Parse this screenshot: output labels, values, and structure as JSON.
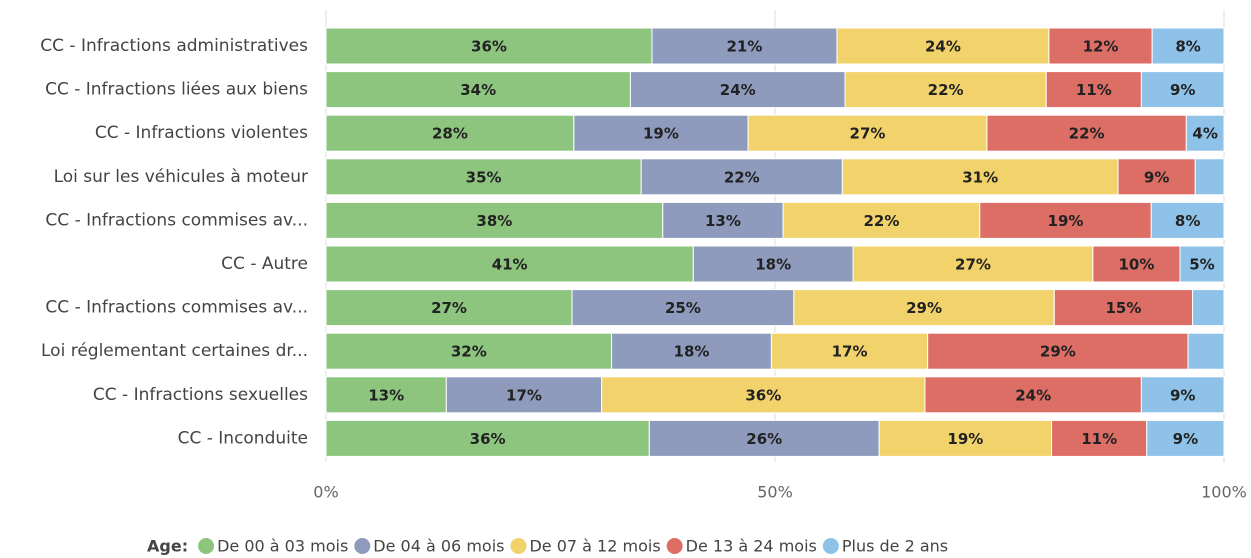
{
  "chart_data": {
    "type": "stacked-bar-horizontal",
    "categories": [
      "CC - Infractions administratives",
      "CC - Infractions liées aux biens",
      "CC - Infractions violentes",
      "Loi sur les véhicules à moteur",
      "CC - Infractions commises av...",
      "CC - Autre",
      "CC - Infractions commises av...",
      "Loi réglementant certaines dr...",
      "CC - Infractions sexuelles",
      "CC - Inconduite"
    ],
    "legend_title": "Age:",
    "series": [
      {
        "name": "De 00 à 03 mois",
        "color": "#8dc57f",
        "values": [
          36.3,
          33.9,
          27.6,
          35.1,
          37.5,
          40.9,
          27.4,
          31.8,
          13.4,
          36.0
        ],
        "value_labels": [
          "36%",
          "34%",
          "28%",
          "35%",
          "38%",
          "41%",
          "27%",
          "32%",
          "13%",
          "36%"
        ]
      },
      {
        "name": "De 04 à 06 mois",
        "color": "#8e9bbd",
        "values": [
          20.6,
          23.9,
          19.4,
          22.4,
          13.4,
          17.8,
          24.7,
          17.8,
          17.3,
          25.6
        ],
        "value_labels": [
          "21%",
          "24%",
          "19%",
          "22%",
          "13%",
          "18%",
          "25%",
          "18%",
          "17%",
          "26%"
        ]
      },
      {
        "name": "De 07 à 12 mois",
        "color": "#f2d36b",
        "values": [
          23.6,
          22.4,
          26.6,
          30.7,
          21.9,
          26.7,
          29.0,
          17.4,
          36.0,
          19.2
        ],
        "value_labels": [
          "24%",
          "22%",
          "27%",
          "31%",
          "22%",
          "27%",
          "29%",
          "17%",
          "36%",
          "19%"
        ]
      },
      {
        "name": "De 13 à 24 mois",
        "color": "#dd6e66",
        "values": [
          11.5,
          10.6,
          22.2,
          8.6,
          19.1,
          9.7,
          15.4,
          29.0,
          24.1,
          10.6
        ],
        "value_labels": [
          "12%",
          "11%",
          "22%",
          "9%",
          "19%",
          "10%",
          "15%",
          "29%",
          "24%",
          "11%"
        ]
      },
      {
        "name": "Plus de 2 ans",
        "color": "#8ec2e8",
        "values": [
          8.0,
          9.2,
          4.2,
          3.2,
          8.1,
          4.9,
          3.5,
          4.0,
          9.2,
          8.6
        ],
        "value_labels": [
          "8%",
          "9%",
          "4%",
          null,
          "8%",
          "5%",
          null,
          null,
          "9%",
          "9%"
        ]
      }
    ],
    "xlim": [
      0,
      100
    ],
    "xticks": [
      {
        "value": 0,
        "label": "0%"
      },
      {
        "value": 50,
        "label": "50%"
      },
      {
        "value": 100,
        "label": "100%"
      }
    ],
    "grid": true
  }
}
